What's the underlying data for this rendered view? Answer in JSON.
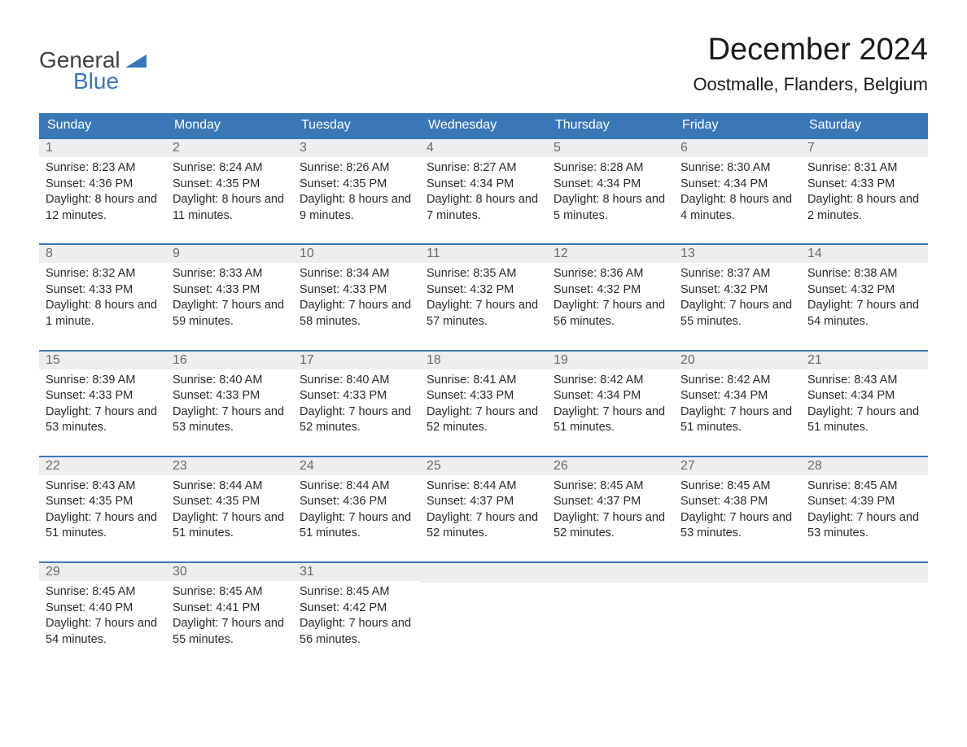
{
  "logo": {
    "text_general": "General",
    "text_blue": "Blue",
    "tri_color": "#3a77b7",
    "general_color": "#404040"
  },
  "title": "December 2024",
  "location": "Oostmalle, Flanders, Belgium",
  "colors": {
    "header_bg": "#3a77b7",
    "header_text": "#ffffff",
    "daynum_bg": "#eeeeee",
    "daynum_text": "#6a6a6a",
    "body_text": "#2a2a2a",
    "week_border": "#3a77b7",
    "page_bg": "#ffffff"
  },
  "day_headers": [
    "Sunday",
    "Monday",
    "Tuesday",
    "Wednesday",
    "Thursday",
    "Friday",
    "Saturday"
  ],
  "weeks": [
    [
      {
        "n": "1",
        "sunrise": "Sunrise: 8:23 AM",
        "sunset": "Sunset: 4:36 PM",
        "daylight": "Daylight: 8 hours and 12 minutes."
      },
      {
        "n": "2",
        "sunrise": "Sunrise: 8:24 AM",
        "sunset": "Sunset: 4:35 PM",
        "daylight": "Daylight: 8 hours and 11 minutes."
      },
      {
        "n": "3",
        "sunrise": "Sunrise: 8:26 AM",
        "sunset": "Sunset: 4:35 PM",
        "daylight": "Daylight: 8 hours and 9 minutes."
      },
      {
        "n": "4",
        "sunrise": "Sunrise: 8:27 AM",
        "sunset": "Sunset: 4:34 PM",
        "daylight": "Daylight: 8 hours and 7 minutes."
      },
      {
        "n": "5",
        "sunrise": "Sunrise: 8:28 AM",
        "sunset": "Sunset: 4:34 PM",
        "daylight": "Daylight: 8 hours and 5 minutes."
      },
      {
        "n": "6",
        "sunrise": "Sunrise: 8:30 AM",
        "sunset": "Sunset: 4:34 PM",
        "daylight": "Daylight: 8 hours and 4 minutes."
      },
      {
        "n": "7",
        "sunrise": "Sunrise: 8:31 AM",
        "sunset": "Sunset: 4:33 PM",
        "daylight": "Daylight: 8 hours and 2 minutes."
      }
    ],
    [
      {
        "n": "8",
        "sunrise": "Sunrise: 8:32 AM",
        "sunset": "Sunset: 4:33 PM",
        "daylight": "Daylight: 8 hours and 1 minute."
      },
      {
        "n": "9",
        "sunrise": "Sunrise: 8:33 AM",
        "sunset": "Sunset: 4:33 PM",
        "daylight": "Daylight: 7 hours and 59 minutes."
      },
      {
        "n": "10",
        "sunrise": "Sunrise: 8:34 AM",
        "sunset": "Sunset: 4:33 PM",
        "daylight": "Daylight: 7 hours and 58 minutes."
      },
      {
        "n": "11",
        "sunrise": "Sunrise: 8:35 AM",
        "sunset": "Sunset: 4:32 PM",
        "daylight": "Daylight: 7 hours and 57 minutes."
      },
      {
        "n": "12",
        "sunrise": "Sunrise: 8:36 AM",
        "sunset": "Sunset: 4:32 PM",
        "daylight": "Daylight: 7 hours and 56 minutes."
      },
      {
        "n": "13",
        "sunrise": "Sunrise: 8:37 AM",
        "sunset": "Sunset: 4:32 PM",
        "daylight": "Daylight: 7 hours and 55 minutes."
      },
      {
        "n": "14",
        "sunrise": "Sunrise: 8:38 AM",
        "sunset": "Sunset: 4:32 PM",
        "daylight": "Daylight: 7 hours and 54 minutes."
      }
    ],
    [
      {
        "n": "15",
        "sunrise": "Sunrise: 8:39 AM",
        "sunset": "Sunset: 4:33 PM",
        "daylight": "Daylight: 7 hours and 53 minutes."
      },
      {
        "n": "16",
        "sunrise": "Sunrise: 8:40 AM",
        "sunset": "Sunset: 4:33 PM",
        "daylight": "Daylight: 7 hours and 53 minutes."
      },
      {
        "n": "17",
        "sunrise": "Sunrise: 8:40 AM",
        "sunset": "Sunset: 4:33 PM",
        "daylight": "Daylight: 7 hours and 52 minutes."
      },
      {
        "n": "18",
        "sunrise": "Sunrise: 8:41 AM",
        "sunset": "Sunset: 4:33 PM",
        "daylight": "Daylight: 7 hours and 52 minutes."
      },
      {
        "n": "19",
        "sunrise": "Sunrise: 8:42 AM",
        "sunset": "Sunset: 4:34 PM",
        "daylight": "Daylight: 7 hours and 51 minutes."
      },
      {
        "n": "20",
        "sunrise": "Sunrise: 8:42 AM",
        "sunset": "Sunset: 4:34 PM",
        "daylight": "Daylight: 7 hours and 51 minutes."
      },
      {
        "n": "21",
        "sunrise": "Sunrise: 8:43 AM",
        "sunset": "Sunset: 4:34 PM",
        "daylight": "Daylight: 7 hours and 51 minutes."
      }
    ],
    [
      {
        "n": "22",
        "sunrise": "Sunrise: 8:43 AM",
        "sunset": "Sunset: 4:35 PM",
        "daylight": "Daylight: 7 hours and 51 minutes."
      },
      {
        "n": "23",
        "sunrise": "Sunrise: 8:44 AM",
        "sunset": "Sunset: 4:35 PM",
        "daylight": "Daylight: 7 hours and 51 minutes."
      },
      {
        "n": "24",
        "sunrise": "Sunrise: 8:44 AM",
        "sunset": "Sunset: 4:36 PM",
        "daylight": "Daylight: 7 hours and 51 minutes."
      },
      {
        "n": "25",
        "sunrise": "Sunrise: 8:44 AM",
        "sunset": "Sunset: 4:37 PM",
        "daylight": "Daylight: 7 hours and 52 minutes."
      },
      {
        "n": "26",
        "sunrise": "Sunrise: 8:45 AM",
        "sunset": "Sunset: 4:37 PM",
        "daylight": "Daylight: 7 hours and 52 minutes."
      },
      {
        "n": "27",
        "sunrise": "Sunrise: 8:45 AM",
        "sunset": "Sunset: 4:38 PM",
        "daylight": "Daylight: 7 hours and 53 minutes."
      },
      {
        "n": "28",
        "sunrise": "Sunrise: 8:45 AM",
        "sunset": "Sunset: 4:39 PM",
        "daylight": "Daylight: 7 hours and 53 minutes."
      }
    ],
    [
      {
        "n": "29",
        "sunrise": "Sunrise: 8:45 AM",
        "sunset": "Sunset: 4:40 PM",
        "daylight": "Daylight: 7 hours and 54 minutes."
      },
      {
        "n": "30",
        "sunrise": "Sunrise: 8:45 AM",
        "sunset": "Sunset: 4:41 PM",
        "daylight": "Daylight: 7 hours and 55 minutes."
      },
      {
        "n": "31",
        "sunrise": "Sunrise: 8:45 AM",
        "sunset": "Sunset: 4:42 PM",
        "daylight": "Daylight: 7 hours and 56 minutes."
      },
      null,
      null,
      null,
      null
    ]
  ]
}
